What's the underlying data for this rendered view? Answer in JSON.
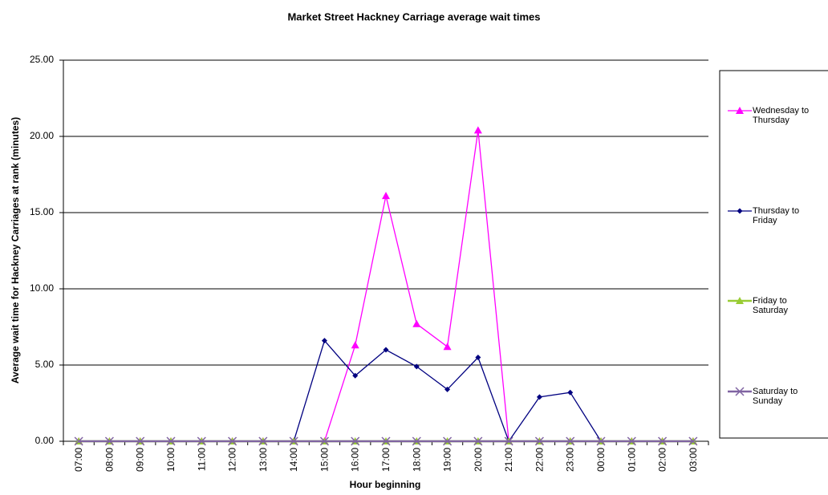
{
  "chart_data": {
    "type": "line",
    "title": "Market Street Hackney Carriage average wait times",
    "x_label": "Hour beginning",
    "y_label": "Average wait time for Hackney Carriages at rank (minutes)",
    "categories": [
      "07:00",
      "08:00",
      "09:00",
      "10:00",
      "11:00",
      "12:00",
      "13:00",
      "14:00",
      "15:00",
      "16:00",
      "17:00",
      "18:00",
      "19:00",
      "20:00",
      "21:00",
      "22:00",
      "23:00",
      "00:00",
      "01:00",
      "02:00",
      "03:00"
    ],
    "series": [
      {
        "name": "Wednesday to Thursday",
        "color": "#ff00ff",
        "marker": "triangle",
        "values": [
          0,
          0,
          0,
          0,
          0,
          0,
          0,
          0,
          0,
          6.3,
          16.1,
          7.7,
          6.2,
          20.4,
          0,
          0,
          0,
          0,
          0,
          0,
          0
        ]
      },
      {
        "name": "Thursday to Friday",
        "color": "#000080",
        "marker": "diamond",
        "values": [
          0,
          0,
          0,
          0,
          0,
          0,
          0,
          0,
          6.6,
          4.3,
          6.0,
          4.9,
          3.4,
          5.5,
          0,
          2.9,
          3.2,
          0,
          0,
          0,
          0
        ]
      },
      {
        "name": "Friday to Saturday",
        "color": "#99cc33",
        "marker": "triangle",
        "values": [
          0,
          0,
          0,
          0,
          0,
          0,
          0,
          0,
          0,
          0,
          0,
          0,
          0,
          0,
          0,
          0,
          0,
          0,
          0,
          0,
          0
        ]
      },
      {
        "name": "Saturday to Sunday",
        "color": "#8064a2",
        "marker": "x",
        "values": [
          0,
          0,
          0,
          0,
          0,
          0,
          0,
          0,
          0,
          0,
          0,
          0,
          0,
          0,
          0,
          0,
          0,
          0,
          0,
          0,
          0
        ]
      }
    ],
    "ylim": [
      0,
      25
    ],
    "yticks": [
      {
        "value": 0,
        "label": "0.00"
      },
      {
        "value": 5,
        "label": "5.00"
      },
      {
        "value": 10,
        "label": "10.00"
      },
      {
        "value": 15,
        "label": "15.00"
      },
      {
        "value": 20,
        "label": "20.00"
      },
      {
        "value": 25,
        "label": "25.00"
      }
    ],
    "grid": true,
    "legend": "right"
  }
}
